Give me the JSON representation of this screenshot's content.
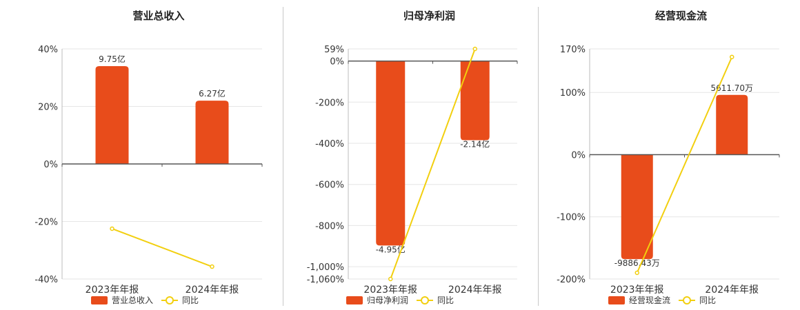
{
  "colors": {
    "bar": "#e84c1b",
    "line": "#f2cf0f",
    "axis": "#555555",
    "grid": "#e6e6e6",
    "text": "#333333"
  },
  "chart_data": [
    {
      "type": "bar",
      "title": "营业总收入",
      "categories": [
        "2023年年报",
        "2024年年报"
      ],
      "bar_labels": [
        "9.75亿",
        "6.27亿"
      ],
      "series": [
        {
          "name": "营业总收入",
          "kind": "bar",
          "values": [
            34,
            22
          ]
        },
        {
          "name": "同比",
          "kind": "line",
          "values": [
            -22.5,
            -35.7
          ]
        }
      ],
      "ylim": [
        -40,
        40
      ],
      "yticks": [
        40,
        20,
        0,
        -20,
        -40
      ],
      "ytick_labels": [
        "40%",
        "20%",
        "0%",
        "-20%",
        "-40%"
      ],
      "legend": "bottom-center",
      "grid": true
    },
    {
      "type": "bar",
      "title": "归母净利润",
      "categories": [
        "2023年年报",
        "2024年年报"
      ],
      "bar_labels": [
        "-4.95亿",
        "-2.14亿"
      ],
      "series": [
        {
          "name": "归母净利润",
          "kind": "bar",
          "values": [
            -897,
            -385
          ]
        },
        {
          "name": "同比",
          "kind": "line",
          "values": [
            -1060,
            59
          ]
        }
      ],
      "ylim": [
        -1060,
        59
      ],
      "yticks": [
        59,
        0,
        -200,
        -400,
        -600,
        -800,
        -1000,
        -1060
      ],
      "ytick_labels": [
        "59%",
        "0%",
        "-200%",
        "-400%",
        "-600%",
        "-800%",
        "-1,000%",
        "-1,060%"
      ],
      "legend": "bottom-center",
      "grid": true
    },
    {
      "type": "bar",
      "title": "经营现金流",
      "categories": [
        "2023年年报",
        "2024年年报"
      ],
      "bar_labels": [
        "-9886.43万",
        "5611.70万"
      ],
      "series": [
        {
          "name": "经营现金流",
          "kind": "bar",
          "values": [
            -168,
            96
          ]
        },
        {
          "name": "同比",
          "kind": "line",
          "values": [
            -190,
            157
          ]
        }
      ],
      "ylim": [
        -200,
        170
      ],
      "yticks": [
        170,
        100,
        0,
        -100,
        -200
      ],
      "ytick_labels": [
        "170%",
        "100%",
        "0%",
        "-100%",
        "-200%"
      ],
      "legend": "bottom-center",
      "grid": true
    }
  ]
}
